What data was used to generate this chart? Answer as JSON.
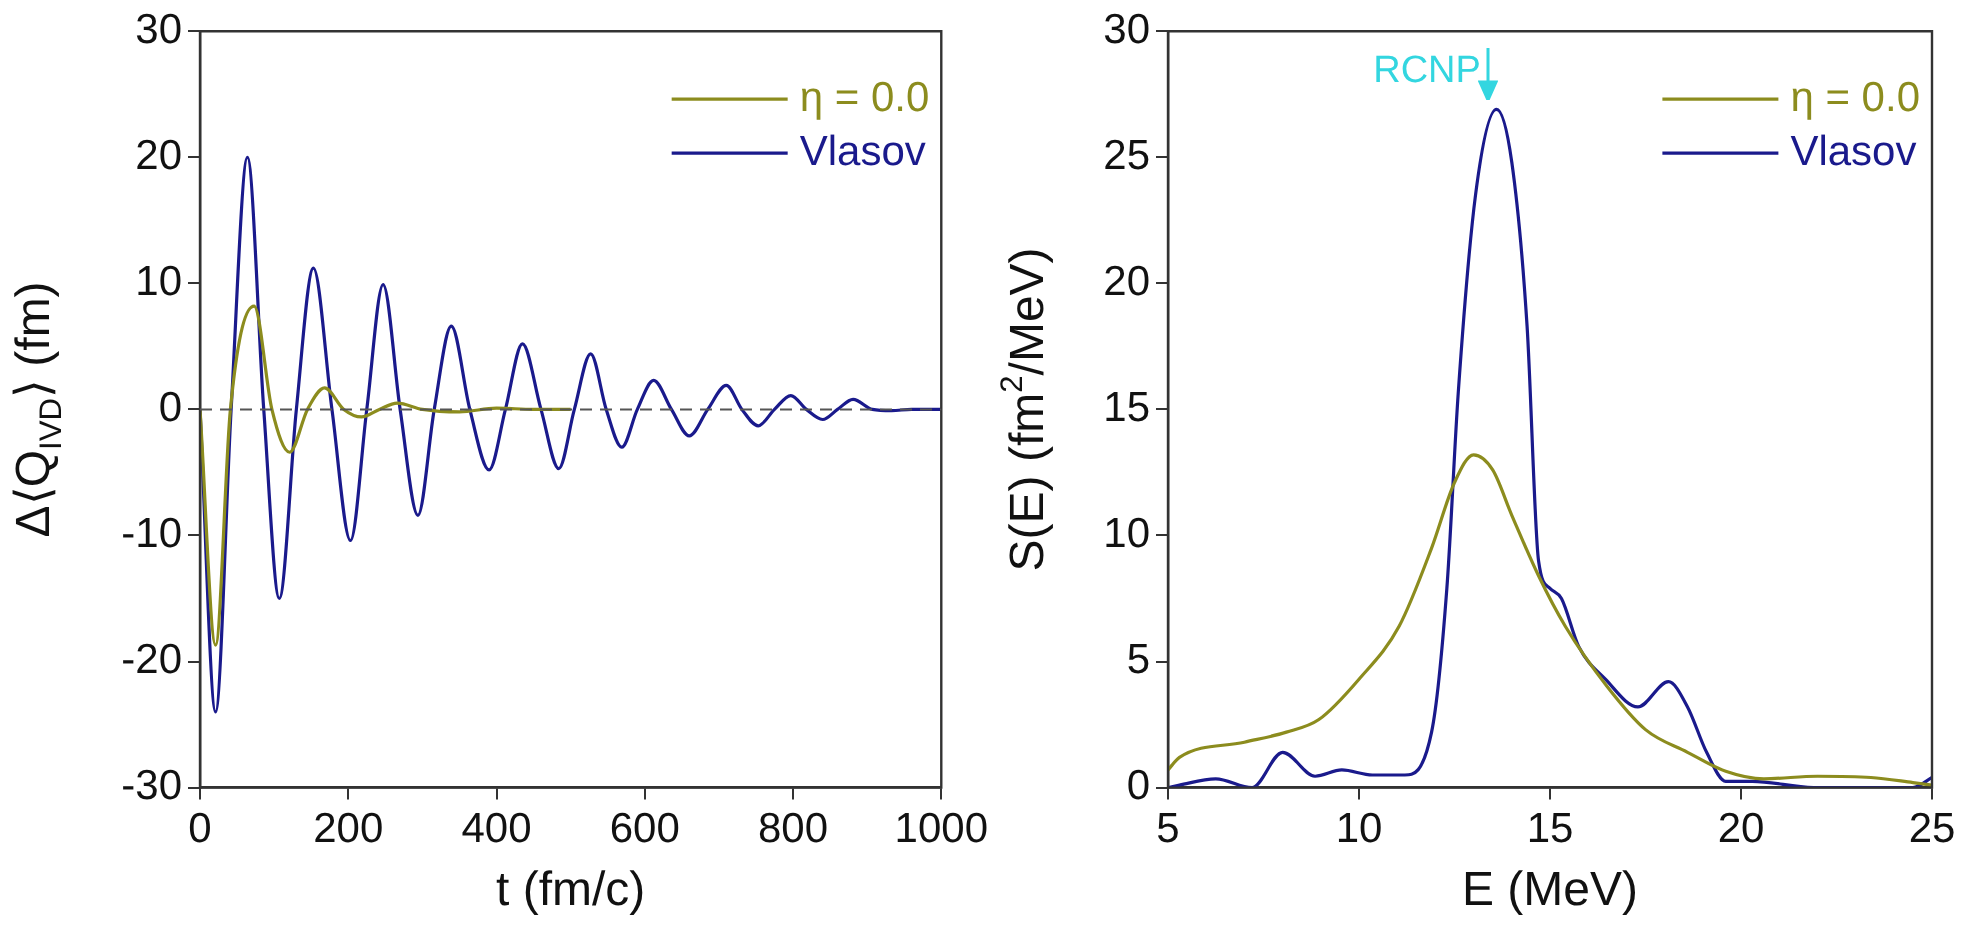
{
  "chart_data": [
    {
      "type": "line",
      "xlabel": "t (fm/c)",
      "ylabel": "Δ⟨Q$_{IVD}$⟩ (fm)",
      "xlim": [
        0,
        1000
      ],
      "xticks": [
        0,
        200,
        400,
        600,
        800,
        1000
      ],
      "ylim": [
        -30,
        30
      ],
      "yticks": [
        -30,
        -20,
        -10,
        0,
        10,
        20,
        30
      ],
      "legend": "top right",
      "marker": "none",
      "line_style": "solid",
      "ref_lines": [
        {
          "axis": "y",
          "value": 0,
          "color": "#555555",
          "line_style": "dashed"
        }
      ],
      "series": [
        {
          "name": "η = 0.0",
          "color": "#8c8c1e",
          "x": [
            0,
            21,
            41,
            73,
            97,
            121,
            145,
            168,
            194,
            218,
            242,
            266,
            300,
            350,
            400,
            450,
            500
          ],
          "values": [
            0,
            -18.7,
            0,
            8.2,
            0,
            -3.4,
            0,
            1.7,
            0,
            -0.6,
            0,
            0.5,
            0,
            -0.2,
            0.1,
            0,
            0
          ]
        },
        {
          "name": "Vlasov",
          "color": "#1a1a8c",
          "x": [
            0,
            21,
            42,
            64,
            86,
            107,
            130,
            153,
            178,
            203,
            225,
            247,
            270,
            294,
            316,
            339,
            364,
            390,
            412,
            435,
            460,
            484,
            505,
            527,
            548,
            569,
            590,
            612,
            636,
            660,
            685,
            710,
            731,
            753,
            775,
            797,
            818,
            840,
            860,
            881,
            907,
            933,
            960,
            1000
          ],
          "values": [
            0,
            -24,
            0,
            20,
            0,
            -15,
            0,
            11.2,
            0,
            -10.4,
            0,
            9.9,
            0,
            -8.4,
            0,
            6.6,
            0,
            -4.8,
            0,
            5.2,
            0,
            -4.7,
            0,
            4.4,
            0,
            -3,
            0,
            2.3,
            0,
            -2.1,
            0,
            1.9,
            0,
            -1.3,
            0,
            1.1,
            0,
            -0.8,
            0,
            0.8,
            0,
            -0.1,
            0,
            0
          ]
        }
      ]
    },
    {
      "type": "line",
      "xlabel": "E (MeV)",
      "ylabel": "S(E) (fm$^{2}$/MeV)",
      "xlim": [
        5,
        25
      ],
      "xticks": [
        5,
        10,
        15,
        20,
        25
      ],
      "ylim": [
        0,
        30
      ],
      "yticks": [
        0,
        5,
        10,
        15,
        20,
        25,
        30
      ],
      "legend": "top right",
      "marker": "none",
      "line_style": "solid",
      "annotations": [
        "RCNP"
      ],
      "series": [
        {
          "name": "η = 0.0",
          "color": "#8c8c1e",
          "x": [
            5,
            5.3,
            7,
            8.1,
            8.95,
            10,
            11.05,
            11.9,
            12.5,
            13,
            13.5,
            14,
            14.7,
            15.4,
            16.5,
            17.5,
            18.6,
            19.6,
            20.6,
            22,
            23.4,
            24.5,
            25
          ],
          "values": [
            0.7,
            1.2,
            1.8,
            2.2,
            2.7,
            4.3,
            6.4,
            9.5,
            12.1,
            13.2,
            12.6,
            10.8,
            8.4,
            6.4,
            4,
            2.3,
            1.4,
            0.65,
            0.35,
            0.45,
            0.4,
            0.2,
            0.1
          ]
        },
        {
          "name": "Vlasov",
          "color": "#1a1a8c",
          "x": [
            5,
            5.3,
            6.25,
            7.2,
            8,
            8.85,
            9.55,
            10.35,
            11.2,
            11.9,
            12.3,
            12.6,
            13.05,
            13.6,
            14,
            14.4,
            14.7,
            15,
            15.3,
            15.75,
            16.45,
            17.3,
            18.1,
            18.6,
            19.1,
            19.6,
            20.3,
            21.9,
            24.5,
            25
          ],
          "values": [
            0,
            0.1,
            0.35,
            0,
            1.4,
            0.45,
            0.7,
            0.5,
            0.5,
            2.2,
            7.9,
            15.7,
            23.5,
            26.9,
            24.8,
            18.3,
            9,
            7.9,
            7.5,
            5.6,
            4.3,
            3.2,
            4.2,
            3.2,
            1.4,
            0.25,
            0.25,
            0,
            0,
            0.4
          ]
        }
      ]
    }
  ]
}
